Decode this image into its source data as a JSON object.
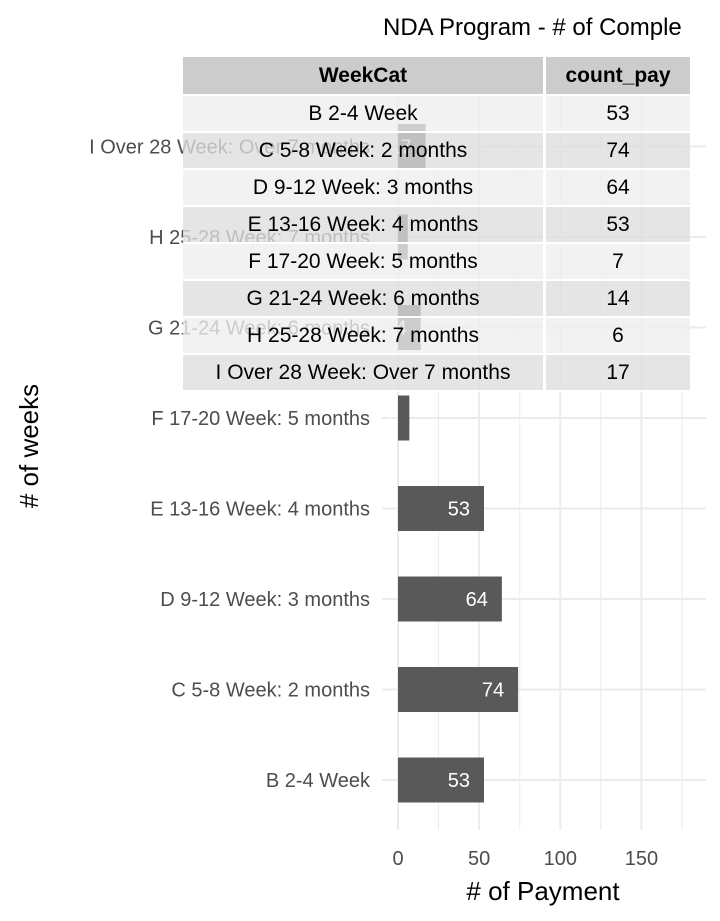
{
  "chart_data": {
    "type": "bar",
    "orientation": "horizontal",
    "title": "NDA Program - # of Comple",
    "xlabel": "# of Payment",
    "ylabel": "# of weeks",
    "categories": [
      "B 2-4 Week",
      "C 5-8 Week: 2 months",
      "D 9-12 Week: 3 months",
      "E 13-16 Week: 4 months",
      "F 17-20 Week: 5 months",
      "G 21-24 Week: 6 months",
      "H 25-28 Week: 7 months",
      "I Over 28 Week: Over 7 months"
    ],
    "values": [
      53,
      74,
      64,
      53,
      7,
      14,
      6,
      17
    ],
    "value_labels": [
      "53",
      "74",
      "64",
      "53",
      "7",
      "14",
      "6",
      "17"
    ],
    "x_ticks": [
      "0",
      "50",
      "100",
      "150"
    ],
    "x_tick_values": [
      0,
      50,
      100,
      150
    ],
    "xlim": [
      0,
      187
    ],
    "grid": true,
    "bar_color": "#595959",
    "grid_color": "#ebebeb"
  },
  "table": {
    "headers": [
      "WeekCat",
      "count_pay"
    ],
    "rows": [
      [
        "B 2-4 Week",
        "53"
      ],
      [
        "C 5-8 Week: 2 months",
        "74"
      ],
      [
        "D 9-12 Week: 3 months",
        "64"
      ],
      [
        "E 13-16 Week: 4 months",
        "53"
      ],
      [
        "F 17-20 Week: 5 months",
        "7"
      ],
      [
        "G 21-24 Week: 6 months",
        "14"
      ],
      [
        "H 25-28 Week: 7 months",
        "6"
      ],
      [
        "I Over 28 Week: Over 7 months",
        "17"
      ]
    ]
  }
}
